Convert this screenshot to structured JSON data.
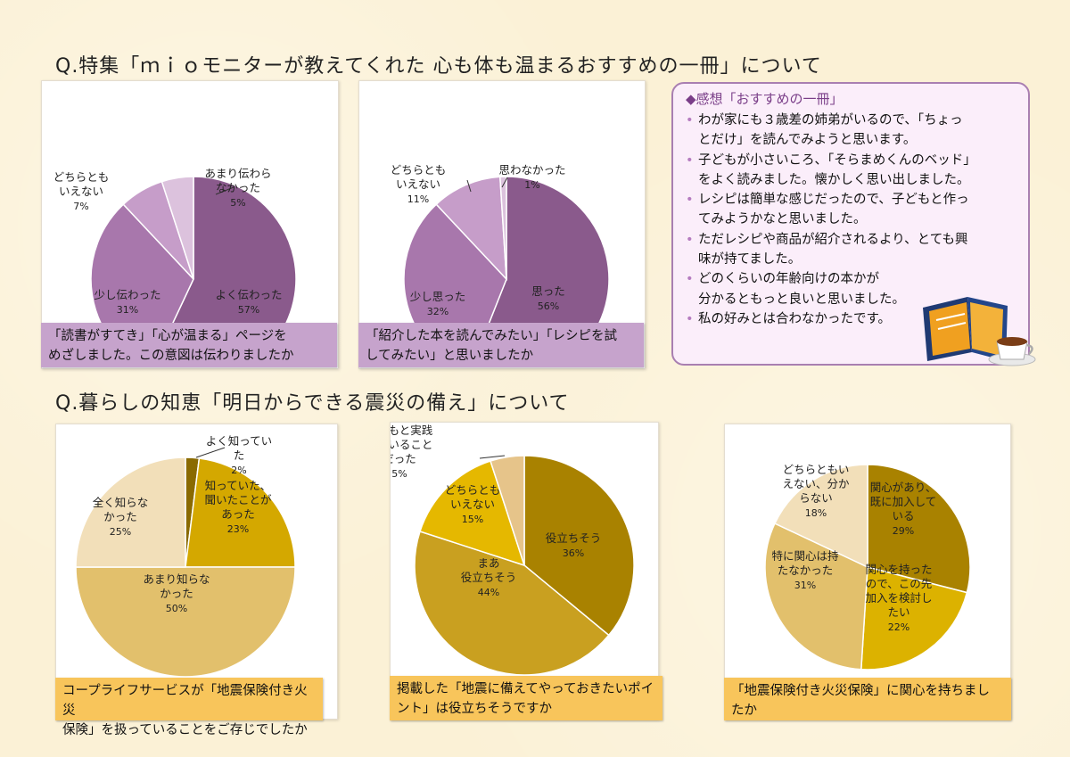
{
  "section1": {
    "title": "Q.特集「ｍｉｏモニターが教えてくれた 心も体も温まるおすすめの一冊」について"
  },
  "section2": {
    "title": "Q.暮らしの知恵「明日からできる震災の備え」について"
  },
  "comments": {
    "title": "◆感想「おすすめの一冊」",
    "items": [
      [
        "わが家にも３歳差の姉弟がいるので、「ちょっ",
        "とだけ」を読んでみようと思います。"
      ],
      [
        "子どもが小さいころ、「そらまめくんのベッド」",
        "をよく読みました。懐かしく思い出しました。"
      ],
      [
        "レシピは簡単な感じだったので、子どもと作っ",
        "てみようかなと思いました。"
      ],
      [
        "ただレシピや商品が紹介されるより、とても興",
        "味が持てました。"
      ],
      [
        "どのくらいの年齢向けの本かが",
        "分かるともっと良いと思いました。"
      ],
      [
        "私の好みとは合わなかったです。"
      ]
    ]
  },
  "colors": {
    "purple_dark": "#8a5a8c",
    "purple_mid": "#a877ac",
    "purple_light": "#c69dc9",
    "purple_pale": "#dcc2dd",
    "gold_dark": "#a07d00",
    "gold_mid": "#d4a800",
    "gold_light": "#e8c98a",
    "gold_pale": "#f2dfb9"
  },
  "chart_data": [
    {
      "type": "pie",
      "question": [
        "「読書がすてき」「心が温まる」ページを",
        "めざしました。この意図は伝わりましたか"
      ],
      "slices": [
        {
          "label": [
            "よく伝わった"
          ],
          "pct": "57%",
          "value": 57,
          "color": "#8a5a8c"
        },
        {
          "label": [
            "少し伝わった"
          ],
          "pct": "31%",
          "value": 31,
          "color": "#a877ac"
        },
        {
          "label": [
            "どちらとも",
            "いえない"
          ],
          "pct": "7%",
          "value": 7,
          "color": "#c69dc9"
        },
        {
          "label": [
            "あまり伝わら",
            "なかった"
          ],
          "pct": "5%",
          "value": 5,
          "color": "#dcc2dd"
        }
      ]
    },
    {
      "type": "pie",
      "question": [
        "「紹介した本を読んでみたい」「レシピを試",
        "してみたい」と思いましたか"
      ],
      "slices": [
        {
          "label": [
            "思った"
          ],
          "pct": "56%",
          "value": 56,
          "color": "#8a5a8c"
        },
        {
          "label": [
            "少し思った"
          ],
          "pct": "32%",
          "value": 32,
          "color": "#a877ac"
        },
        {
          "label": [
            "どちらとも",
            "いえない"
          ],
          "pct": "11%",
          "value": 11,
          "color": "#c69dc9"
        },
        {
          "label": [
            "思わなかった"
          ],
          "pct": "1%",
          "value": 1,
          "color": "#dcc2dd"
        }
      ]
    },
    {
      "type": "pie",
      "question": [
        "コープライフサービスが「地震保険付き火災",
        "保険」を扱っていることをご存じでしたか"
      ],
      "slices": [
        {
          "label": [
            "よく知ってい",
            "た"
          ],
          "pct": "2%",
          "value": 2,
          "color": "#8a6a00"
        },
        {
          "label": [
            "知っていた、",
            "聞いたことが",
            "あった"
          ],
          "pct": "23%",
          "value": 23,
          "color": "#d4a800"
        },
        {
          "label": [
            "あまり知らな",
            "かった"
          ],
          "pct": "50%",
          "value": 50,
          "color": "#e2c06c"
        },
        {
          "label": [
            "全く知らな",
            "かった"
          ],
          "pct": "25%",
          "value": 25,
          "color": "#f2dfb9"
        }
      ]
    },
    {
      "type": "pie",
      "question": [
        "掲載した「地震に備えてやっておきたいポイ",
        "ント」は役立ちそうですか"
      ],
      "slices": [
        {
          "label": [
            "役立ちそう"
          ],
          "pct": "36%",
          "value": 36,
          "color": "#a98200"
        },
        {
          "label": [
            "まあ",
            "役立ちそう"
          ],
          "pct": "44%",
          "value": 44,
          "color": "#c9a020"
        },
        {
          "label": [
            "どちらとも",
            "いえない"
          ],
          "pct": "15%",
          "value": 15,
          "color": "#e5b800"
        },
        {
          "label": [
            "もともと実践",
            "していること",
            "だった"
          ],
          "pct": "5%",
          "value": 5,
          "color": "#e6c48a"
        }
      ]
    },
    {
      "type": "pie",
      "question": [
        "「地震保険付き火災保険」に関心を持ちまし",
        "たか"
      ],
      "slices": [
        {
          "label": [
            "関心があり、",
            "既に加入して",
            "いる"
          ],
          "pct": "29%",
          "value": 29,
          "color": "#a98200"
        },
        {
          "label": [
            "関心を持った",
            "ので、この先",
            "加入を検討し",
            "たい"
          ],
          "pct": "22%",
          "value": 22,
          "color": "#dcb200"
        },
        {
          "label": [
            "特に関心は持",
            "たなかった"
          ],
          "pct": "31%",
          "value": 31,
          "color": "#e2c06c"
        },
        {
          "label": [
            "どちらともい",
            "えない、分か",
            "らない"
          ],
          "pct": "18%",
          "value": 18,
          "color": "#f2dfb9"
        }
      ]
    }
  ]
}
